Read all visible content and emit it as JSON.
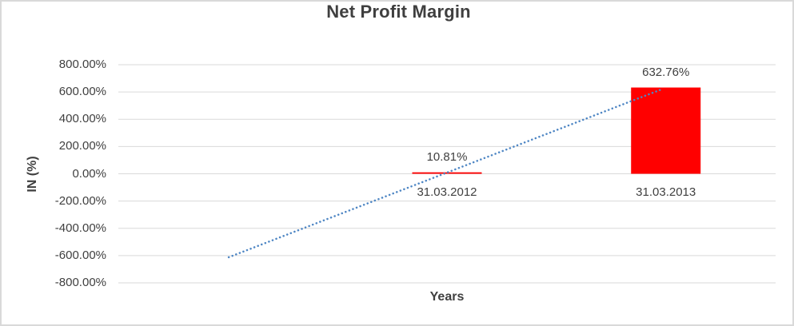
{
  "window": {
    "background": "#FFFFFF",
    "border_color": "#D9D9D9"
  },
  "chart_data": {
    "type": "bar",
    "title": "Net Profit Margin",
    "xlabel": "Years",
    "ylabel": "IN (%)",
    "categories": [
      "31.03.2012",
      "31.03.2013"
    ],
    "values": [
      10.81,
      632.76
    ],
    "data_labels": [
      "10.81%",
      "632.76%"
    ],
    "ylim": [
      -800,
      800
    ],
    "ytick_step": 200,
    "ytick_labels": [
      "800.00%",
      "600.00%",
      "400.00%",
      "200.00%",
      "0.00%",
      "-200.00%",
      "-400.00%",
      "-600.00%",
      "-800.00%"
    ],
    "grid": true,
    "legend": false,
    "bar_color": "#FF0000",
    "grid_color": "#D9D9D9",
    "text_color": "#404040",
    "bar_center_fracs": [
      0.5,
      0.833
    ],
    "trendline": {
      "type": "linear",
      "style": "dotted",
      "color": "#4E86C4",
      "x1_frac": 0.168,
      "y1_value_pct": -612,
      "x2_frac": 0.829,
      "y2_value_pct": 624
    }
  }
}
